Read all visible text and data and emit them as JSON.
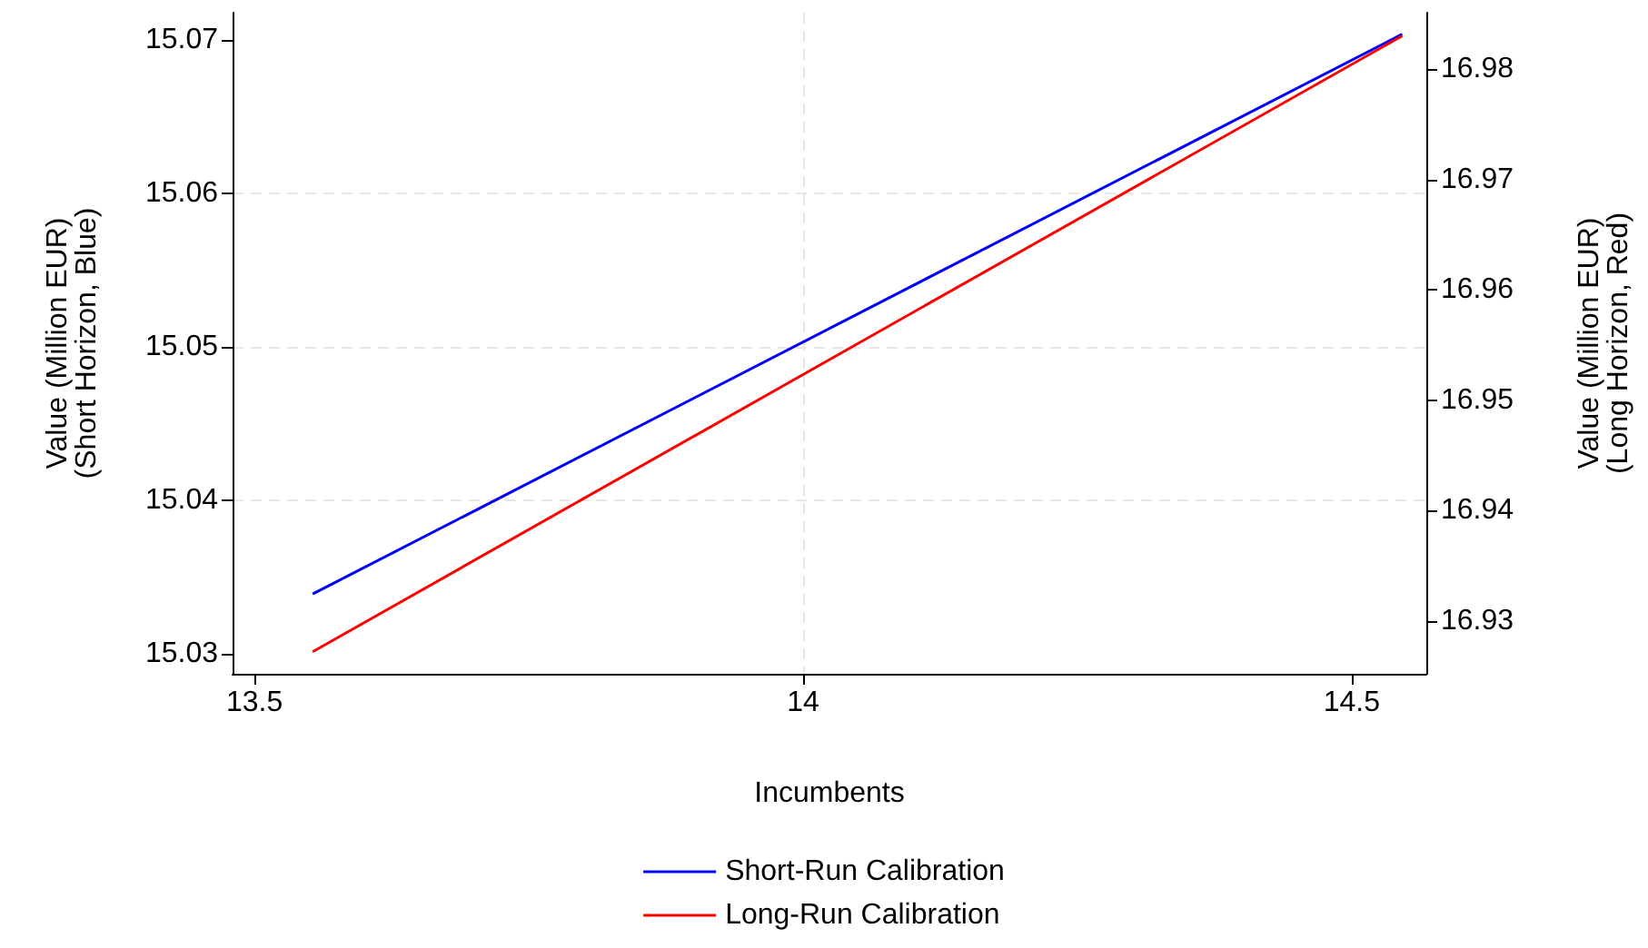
{
  "chart_data": {
    "type": "line",
    "xlabel": "Incumbents",
    "ylabel": "Value (Million EUR)\n(Short Horizon, Blue)",
    "y2label": "Value (Million EUR)\n(Long Horizon, Red)",
    "x": [
      13.553,
      14.546
    ],
    "series": [
      {
        "name": "Short-Run Calibration",
        "color": "#0000ff",
        "values": [
          15.0339,
          15.0704
        ]
      },
      {
        "name": "Long-Run Calibration",
        "color": "#ff0000",
        "values": [
          16.9272,
          16.983
        ],
        "axis": "y2"
      }
    ],
    "xlim": [
      13.48,
      14.568
    ],
    "xticks": [
      13.5,
      14,
      14.5
    ],
    "ylim": [
      15.0287,
      15.0718
    ],
    "yticks": [
      15.03,
      15.04,
      15.05,
      15.06,
      15.07
    ],
    "y2lim": [
      16.9252,
      16.9851
    ],
    "y2ticks": [
      16.93,
      16.94,
      16.95,
      16.96,
      16.97,
      16.98
    ],
    "grid": true,
    "legend": "bottom",
    "marker": "none",
    "line_style": "solid"
  }
}
